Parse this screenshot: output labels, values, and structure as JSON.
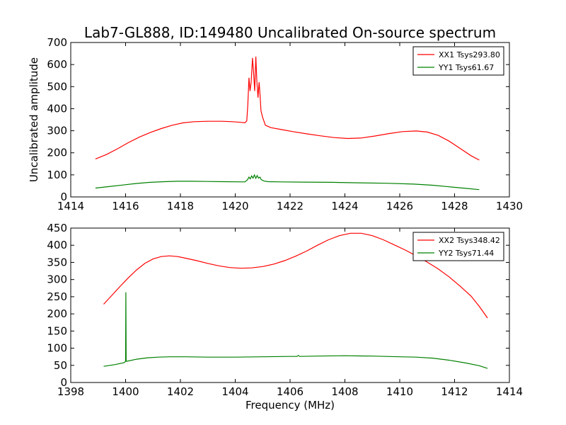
{
  "figure": {
    "title": "Lab7-GL888, ID:149480 Uncalibrated On-source spectrum",
    "xlabel": "Frequency (MHz)",
    "ylabel": "Uncalibrated amplitude"
  },
  "chart_data": [
    {
      "type": "line",
      "xlim": [
        1414,
        1430
      ],
      "ylim": [
        0,
        700
      ],
      "xticks": [
        1414,
        1416,
        1418,
        1420,
        1422,
        1424,
        1426,
        1428,
        1430
      ],
      "yticks": [
        0,
        100,
        200,
        300,
        400,
        500,
        600,
        700
      ],
      "legend_position": "top-right",
      "series": [
        {
          "name": "XX1 Tsys293.80",
          "color": "#ff0000",
          "points": [
            [
              1414.9,
              172
            ],
            [
              1415.3,
              192
            ],
            [
              1415.7,
              218
            ],
            [
              1416.1,
              246
            ],
            [
              1416.5,
              271
            ],
            [
              1416.9,
              292
            ],
            [
              1417.3,
              310
            ],
            [
              1417.7,
              325
            ],
            [
              1418.1,
              336
            ],
            [
              1418.5,
              341
            ],
            [
              1419.0,
              343
            ],
            [
              1419.5,
              343
            ],
            [
              1419.9,
              341
            ],
            [
              1420.2,
              338
            ],
            [
              1420.35,
              336
            ],
            [
              1420.42,
              345
            ],
            [
              1420.46,
              420
            ],
            [
              1420.5,
              540
            ],
            [
              1420.54,
              480
            ],
            [
              1420.58,
              520
            ],
            [
              1420.63,
              630
            ],
            [
              1420.67,
              560
            ],
            [
              1420.71,
              480
            ],
            [
              1420.75,
              636
            ],
            [
              1420.79,
              520
            ],
            [
              1420.83,
              450
            ],
            [
              1420.87,
              520
            ],
            [
              1420.9,
              470
            ],
            [
              1420.94,
              390
            ],
            [
              1421.0,
              360
            ],
            [
              1421.1,
              325
            ],
            [
              1421.3,
              314
            ],
            [
              1421.7,
              305
            ],
            [
              1422.1,
              296
            ],
            [
              1422.6,
              286
            ],
            [
              1423.1,
              277
            ],
            [
              1423.6,
              269
            ],
            [
              1424.1,
              265
            ],
            [
              1424.6,
              267
            ],
            [
              1425.1,
              276
            ],
            [
              1425.6,
              287
            ],
            [
              1426.1,
              296
            ],
            [
              1426.6,
              299
            ],
            [
              1427.0,
              294
            ],
            [
              1427.4,
              279
            ],
            [
              1427.8,
              253
            ],
            [
              1428.2,
              220
            ],
            [
              1428.6,
              187
            ],
            [
              1428.9,
              167
            ]
          ]
        },
        {
          "name": "YY1 Tsys61.67",
          "color": "#008000",
          "points": [
            [
              1414.9,
              40
            ],
            [
              1415.4,
              47
            ],
            [
              1415.9,
              54
            ],
            [
              1416.4,
              61
            ],
            [
              1416.9,
              66
            ],
            [
              1417.4,
              69
            ],
            [
              1417.9,
              71
            ],
            [
              1418.4,
              71
            ],
            [
              1419.0,
              70
            ],
            [
              1419.6,
              69
            ],
            [
              1420.35,
              68
            ],
            [
              1420.45,
              78
            ],
            [
              1420.5,
              90
            ],
            [
              1420.55,
              82
            ],
            [
              1420.6,
              95
            ],
            [
              1420.65,
              85
            ],
            [
              1420.7,
              100
            ],
            [
              1420.75,
              84
            ],
            [
              1420.8,
              97
            ],
            [
              1420.85,
              85
            ],
            [
              1420.9,
              90
            ],
            [
              1420.95,
              78
            ],
            [
              1421.05,
              72
            ],
            [
              1421.2,
              69
            ],
            [
              1421.7,
              68
            ],
            [
              1422.5,
              67
            ],
            [
              1423.5,
              66
            ],
            [
              1424.5,
              64
            ],
            [
              1425.5,
              62
            ],
            [
              1426.5,
              58
            ],
            [
              1427.2,
              53
            ],
            [
              1427.8,
              46
            ],
            [
              1428.4,
              39
            ],
            [
              1428.9,
              33
            ]
          ]
        }
      ]
    },
    {
      "type": "line",
      "xlim": [
        1398,
        1414
      ],
      "ylim": [
        0,
        450
      ],
      "xticks": [
        1398,
        1400,
        1402,
        1404,
        1406,
        1408,
        1410,
        1412,
        1414
      ],
      "yticks": [
        0,
        50,
        100,
        150,
        200,
        250,
        300,
        350,
        400,
        450
      ],
      "legend_position": "top-right",
      "series": [
        {
          "name": "XX2 Tsys348.42",
          "color": "#ff0000",
          "points": [
            [
              1399.2,
              228
            ],
            [
              1399.5,
              254
            ],
            [
              1399.8,
              280
            ],
            [
              1400.1,
              305
            ],
            [
              1400.4,
              328
            ],
            [
              1400.7,
              347
            ],
            [
              1401.0,
              360
            ],
            [
              1401.3,
              367
            ],
            [
              1401.6,
              369
            ],
            [
              1401.9,
              367
            ],
            [
              1402.2,
              362
            ],
            [
              1402.6,
              355
            ],
            [
              1403.0,
              347
            ],
            [
              1403.4,
              340
            ],
            [
              1403.8,
              335
            ],
            [
              1404.2,
              333
            ],
            [
              1404.6,
              334
            ],
            [
              1405.0,
              338
            ],
            [
              1405.4,
              345
            ],
            [
              1405.8,
              355
            ],
            [
              1406.2,
              368
            ],
            [
              1406.6,
              383
            ],
            [
              1407.0,
              400
            ],
            [
              1407.4,
              416
            ],
            [
              1407.8,
              428
            ],
            [
              1408.2,
              435
            ],
            [
              1408.6,
              435
            ],
            [
              1409.0,
              428
            ],
            [
              1409.4,
              416
            ],
            [
              1409.8,
              401
            ],
            [
              1410.2,
              386
            ],
            [
              1410.6,
              369
            ],
            [
              1411.0,
              351
            ],
            [
              1411.4,
              331
            ],
            [
              1411.8,
              308
            ],
            [
              1412.2,
              281
            ],
            [
              1412.6,
              252
            ],
            [
              1412.9,
              222
            ],
            [
              1413.2,
              188
            ]
          ]
        },
        {
          "name": "YY2 Tsys71.44",
          "color": "#008000",
          "points": [
            [
              1399.2,
              47
            ],
            [
              1399.6,
              52
            ],
            [
              1399.95,
              58
            ],
            [
              1400.0,
              62
            ],
            [
              1400.01,
              263
            ],
            [
              1400.02,
              62
            ],
            [
              1400.05,
              62
            ],
            [
              1400.4,
              68
            ],
            [
              1400.8,
              72
            ],
            [
              1401.2,
              74
            ],
            [
              1401.6,
              75
            ],
            [
              1402.2,
              75
            ],
            [
              1403.0,
              74
            ],
            [
              1404.0,
              74
            ],
            [
              1405.0,
              75
            ],
            [
              1406.0,
              76
            ],
            [
              1406.25,
              76
            ],
            [
              1406.3,
              79
            ],
            [
              1406.35,
              76
            ],
            [
              1407.0,
              77
            ],
            [
              1408.0,
              78
            ],
            [
              1409.0,
              77
            ],
            [
              1410.0,
              75
            ],
            [
              1410.6,
              74
            ],
            [
              1411.2,
              71
            ],
            [
              1411.8,
              65
            ],
            [
              1412.4,
              57
            ],
            [
              1412.9,
              49
            ],
            [
              1413.2,
              41
            ]
          ]
        }
      ]
    }
  ]
}
